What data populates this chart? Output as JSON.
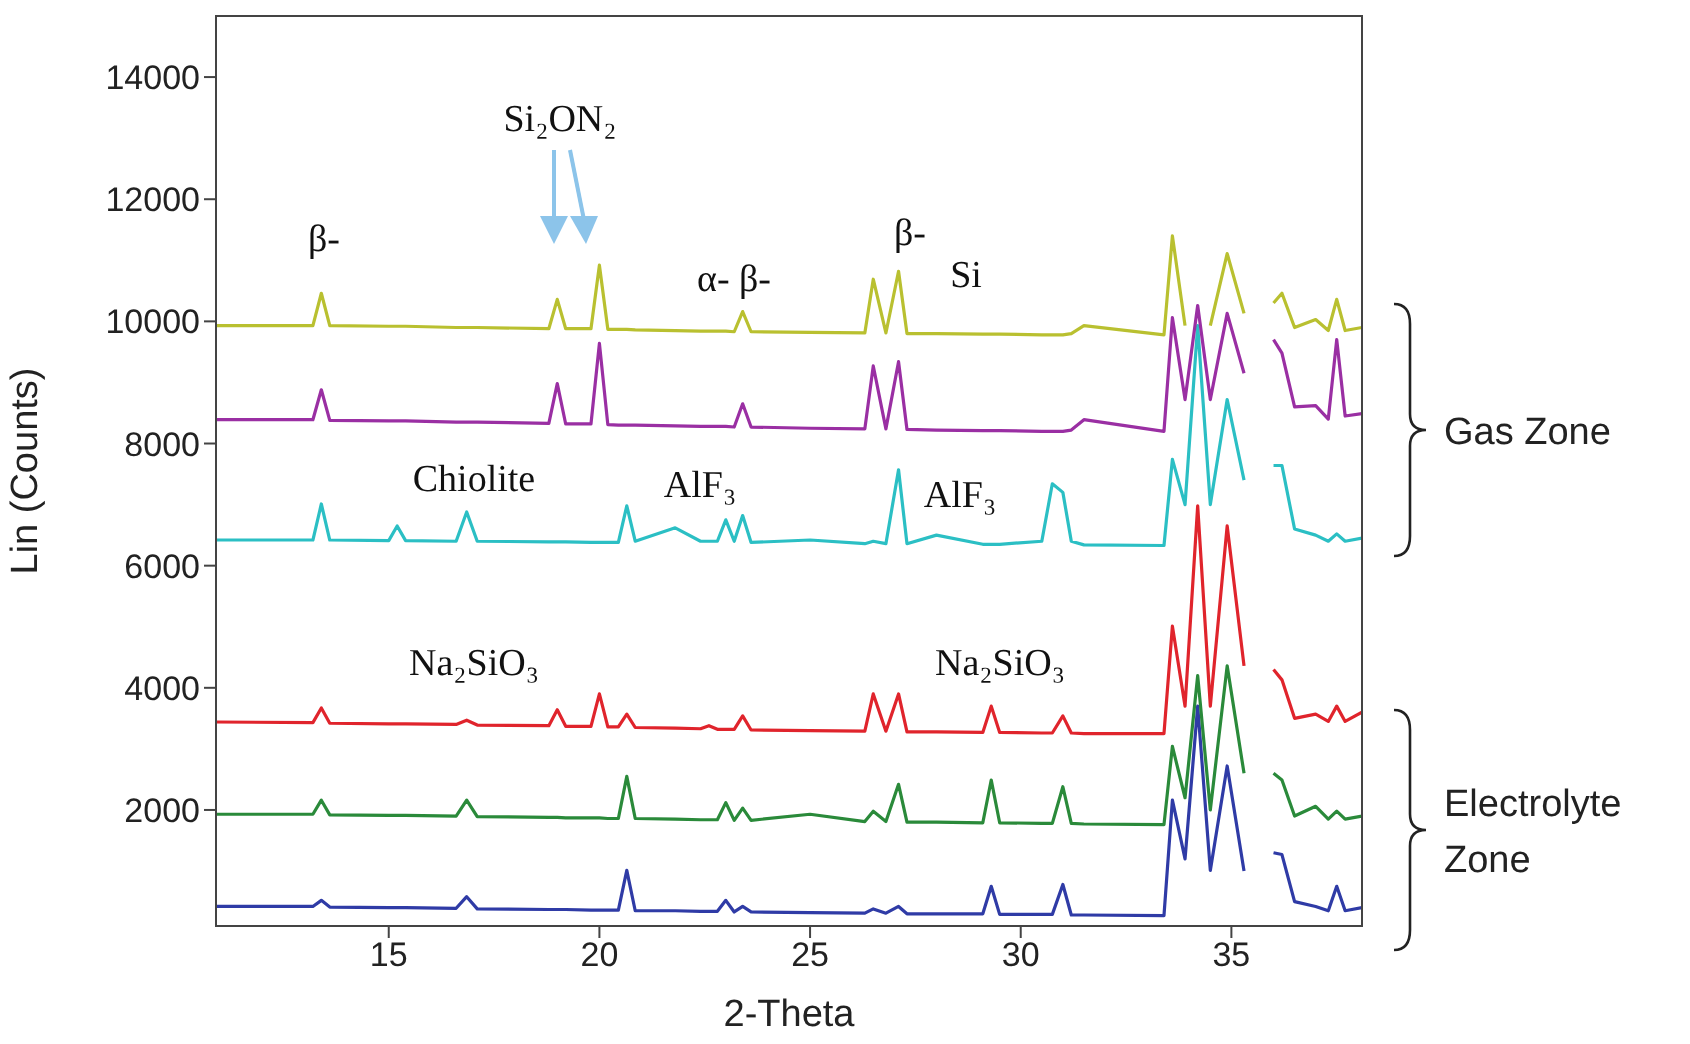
{
  "chart_data": {
    "type": "line",
    "xlabel": "2-Theta",
    "ylabel": "Lin (Counts)",
    "xlim": [
      10.9,
      38.1
    ],
    "xticks": [
      15,
      20,
      25,
      30,
      35
    ],
    "ylim": [
      100,
      15000
    ],
    "yticks": [
      2000,
      4000,
      6000,
      8000,
      10000,
      12000,
      14000
    ],
    "marker": "none",
    "line_style": "solid",
    "x": [
      10.9,
      13.2,
      13.4,
      13.6,
      15.0,
      15.2,
      15.4,
      16.6,
      16.85,
      17.1,
      18.8,
      19.0,
      19.2,
      19.8,
      20.0,
      20.2,
      20.45,
      20.65,
      20.85,
      21.8,
      22.4,
      22.6,
      22.8,
      23.0,
      23.2,
      23.4,
      23.6,
      25.0,
      26.3,
      26.5,
      26.8,
      27.1,
      27.3,
      28.0,
      29.1,
      29.3,
      29.5,
      30.5,
      30.75,
      31.0,
      31.2,
      31.5,
      33.4,
      33.6,
      33.9,
      34.2,
      34.5,
      34.9,
      35.3,
      35.7,
      36.0,
      36.2,
      36.5,
      37.0,
      37.3,
      37.5,
      37.7,
      38.1
    ],
    "series": [
      {
        "color": "#b9c030",
        "values": [
          9930,
          9930,
          10460,
          9930,
          9920,
          9920,
          9920,
          9900,
          9900,
          9900,
          9880,
          10360,
          9880,
          9880,
          10920,
          9870,
          9870,
          9870,
          9860,
          9850,
          9840,
          9840,
          9840,
          9840,
          9830,
          10160,
          9830,
          9820,
          9810,
          10690,
          9810,
          10820,
          9800,
          9800,
          9790,
          9790,
          9790,
          9780,
          9780,
          9780,
          9800,
          9930,
          9780,
          11400,
          9930,
          null,
          9930,
          11110,
          10130,
          null,
          10300,
          10460,
          9900,
          10030,
          9850,
          10360,
          9850,
          9900
        ]
      },
      {
        "color": "#9a2fa3",
        "values": [
          8390,
          8390,
          8880,
          8380,
          8370,
          8370,
          8370,
          8350,
          8350,
          8350,
          8330,
          8980,
          8320,
          8320,
          9640,
          8310,
          8300,
          8300,
          8300,
          8290,
          8280,
          8280,
          8280,
          8280,
          8270,
          8650,
          8270,
          8250,
          8240,
          9270,
          8240,
          9340,
          8230,
          8220,
          8210,
          8210,
          8210,
          8200,
          8200,
          8200,
          8220,
          8390,
          8200,
          10060,
          8720,
          10260,
          8720,
          10130,
          9150,
          null,
          9700,
          9480,
          8600,
          8620,
          8400,
          9700,
          8450,
          8490
        ]
      },
      {
        "color": "#2bbfc4",
        "values": [
          6420,
          6420,
          7010,
          6420,
          6410,
          6650,
          6410,
          6400,
          6880,
          6400,
          6390,
          6390,
          6390,
          6380,
          6380,
          6380,
          6380,
          6980,
          6400,
          6620,
          6400,
          6400,
          6400,
          6750,
          6400,
          6820,
          6380,
          6420,
          6360,
          6400,
          6360,
          7570,
          6360,
          6500,
          6350,
          6350,
          6350,
          6400,
          7340,
          7200,
          6400,
          6340,
          6330,
          7740,
          7000,
          9930,
          7000,
          8720,
          7400,
          null,
          7640,
          7640,
          6600,
          6500,
          6400,
          6520,
          6400,
          6450
        ]
      },
      {
        "color": "#e0242c",
        "values": [
          3440,
          3430,
          3670,
          3420,
          3410,
          3410,
          3410,
          3400,
          3470,
          3390,
          3380,
          3640,
          3370,
          3370,
          3900,
          3360,
          3360,
          3570,
          3350,
          3340,
          3330,
          3380,
          3320,
          3320,
          3320,
          3540,
          3310,
          3300,
          3290,
          3900,
          3290,
          3900,
          3280,
          3280,
          3270,
          3700,
          3270,
          3260,
          3260,
          3540,
          3260,
          3250,
          3250,
          5010,
          3700,
          6980,
          3700,
          6650,
          4360,
          null,
          4300,
          4130,
          3500,
          3570,
          3450,
          3700,
          3450,
          3600
        ]
      },
      {
        "color": "#2a8a3a",
        "values": [
          1930,
          1930,
          2160,
          1920,
          1910,
          1910,
          1910,
          1900,
          2160,
          1890,
          1880,
          1880,
          1870,
          1870,
          1870,
          1860,
          1860,
          2550,
          1860,
          1850,
          1840,
          1840,
          1840,
          2120,
          1830,
          2030,
          1830,
          1930,
          1810,
          1980,
          1810,
          2420,
          1800,
          1800,
          1790,
          2490,
          1790,
          1780,
          1780,
          2380,
          1780,
          1770,
          1760,
          3040,
          2200,
          4200,
          2000,
          4360,
          2600,
          null,
          2600,
          2490,
          1900,
          2060,
          1850,
          1980,
          1850,
          1900
        ]
      },
      {
        "color": "#2f3ba6",
        "values": [
          420,
          420,
          520,
          410,
          400,
          400,
          400,
          390,
          580,
          380,
          370,
          370,
          370,
          360,
          360,
          360,
          360,
          1010,
          350,
          350,
          340,
          340,
          340,
          520,
          330,
          420,
          330,
          320,
          310,
          380,
          310,
          420,
          300,
          300,
          300,
          750,
          290,
          290,
          290,
          780,
          280,
          280,
          270,
          2160,
          1200,
          3700,
          1010,
          2720,
          1000,
          null,
          1300,
          1270,
          500,
          420,
          350,
          750,
          350,
          400
        ]
      }
    ],
    "annotations": [
      "β-",
      "Si₂ON₂",
      "α- β-",
      "β-",
      "Si",
      "Chiolite",
      "AlF₃",
      "AlF₃",
      "Na₂SiO₃",
      "Na₂SiO₃",
      "Gas Zone",
      "Electrolyte Zone"
    ]
  }
}
